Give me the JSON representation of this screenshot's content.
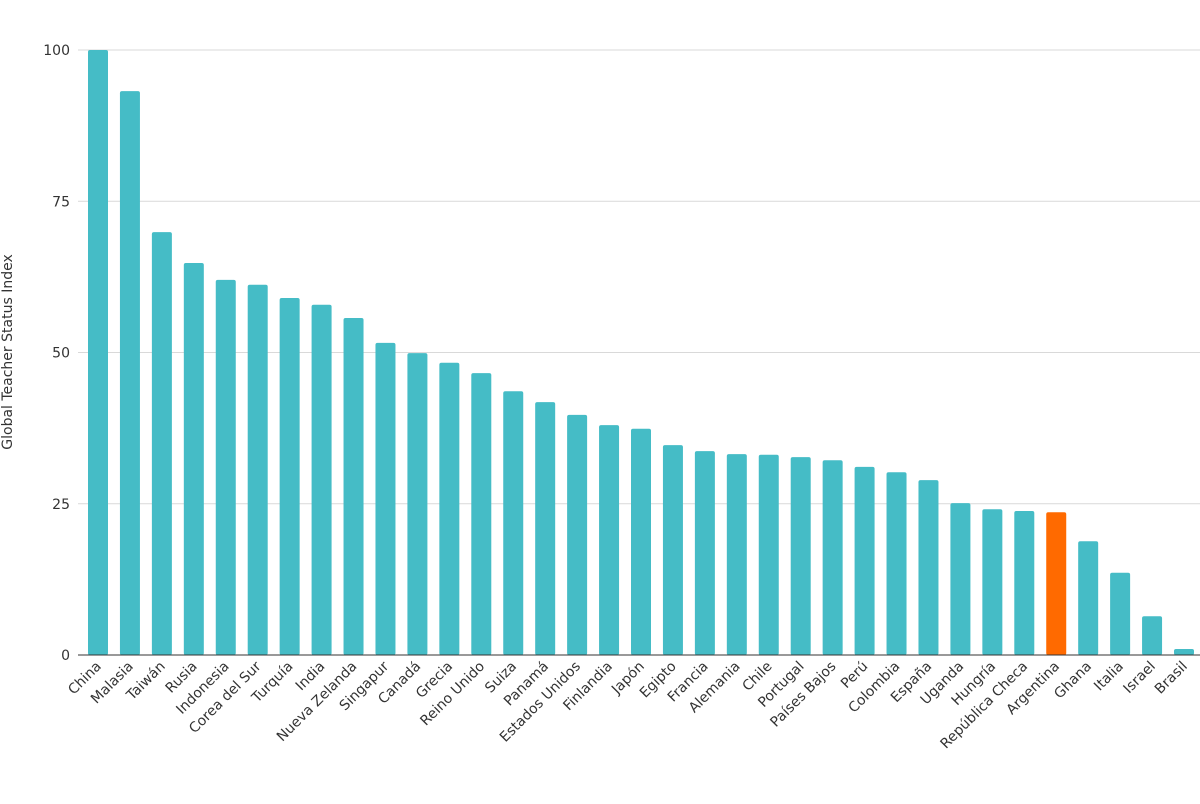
{
  "chart_data": {
    "type": "bar",
    "title": "",
    "xlabel": "",
    "ylabel": "Global Teacher Status Index",
    "ylim": [
      0,
      100
    ],
    "yticks": [
      0,
      25,
      50,
      75,
      100
    ],
    "grid": true,
    "colors": {
      "default": "#45BCC6",
      "highlight": "#FF6A00",
      "grid": "#d9d9d9",
      "axis": "#333333"
    },
    "highlight": "Argentina",
    "categories": [
      "China",
      "Malasia",
      "Taiwán",
      "Rusia",
      "Indonesia",
      "Corea del Sur",
      "Turquía",
      "India",
      "Nueva Zelanda",
      "Singapur",
      "Canadá",
      "Grecia",
      "Reino Unido",
      "Suiza",
      "Panamá",
      "Estados Unidos",
      "Finlandia",
      "Japón",
      "Egipto",
      "Francia",
      "Alemania",
      "Chile",
      "Portugal",
      "Países Bajos",
      "Perú",
      "Colombia",
      "España",
      "Uganda",
      "Hungría",
      "República Checa",
      "Argentina",
      "Ghana",
      "Italia",
      "Israel",
      "Brasil"
    ],
    "values": [
      100,
      93.2,
      69.9,
      64.8,
      62.0,
      61.2,
      59.0,
      57.9,
      55.7,
      51.6,
      49.9,
      48.3,
      46.6,
      43.6,
      41.8,
      39.7,
      38.0,
      37.4,
      34.7,
      33.7,
      33.2,
      33.1,
      32.7,
      32.2,
      31.1,
      30.2,
      28.9,
      25.1,
      24.1,
      23.8,
      23.6,
      18.8,
      13.6,
      6.4,
      1.0
    ]
  }
}
